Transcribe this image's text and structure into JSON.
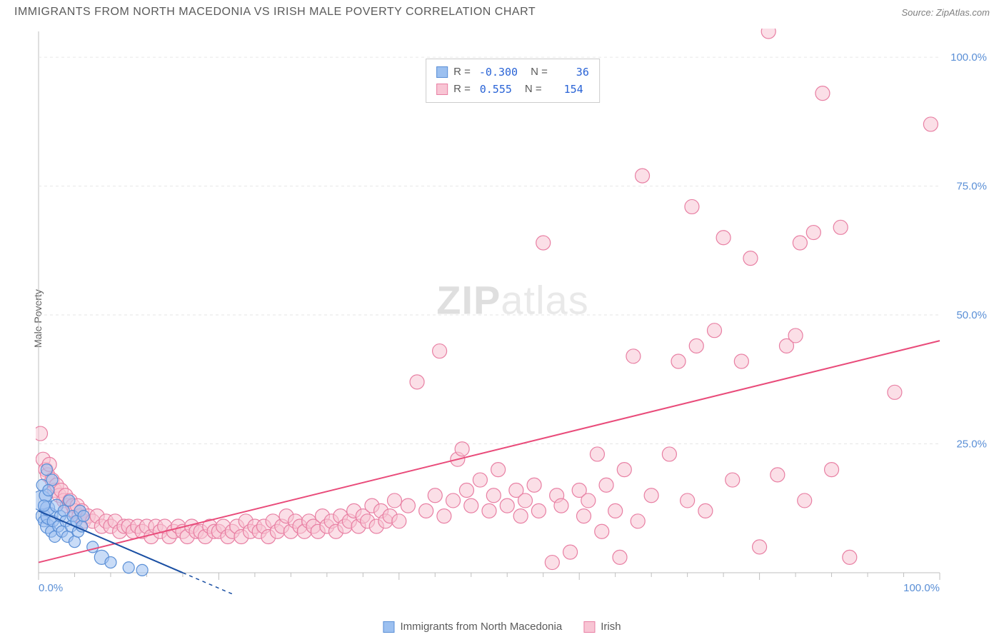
{
  "header": {
    "title": "IMMIGRANTS FROM NORTH MACEDONIA VS IRISH MALE POVERTY CORRELATION CHART",
    "source_prefix": "Source: ",
    "source_name": "ZipAtlas.com"
  },
  "yaxis": {
    "label": "Male Poverty"
  },
  "watermark": {
    "part1": "ZIP",
    "part2": "atlas"
  },
  "colors": {
    "series_a_fill": "#9cc0f0",
    "series_a_stroke": "#5a8fd6",
    "series_a_line": "#1a4fa3",
    "series_b_fill": "#f8c5d4",
    "series_b_stroke": "#e87fa3",
    "series_b_line": "#e94b7a",
    "grid": "#e6e6e6",
    "axis": "#bfbfbf",
    "tick_text": "#5a8fd6",
    "title_text": "#5a5a5a",
    "stat_value": "#2963d6"
  },
  "chart": {
    "type": "scatter-correlation",
    "xlim": [
      0,
      100
    ],
    "ylim": [
      0,
      105
    ],
    "x_ticks_major": [
      0,
      20,
      40,
      60,
      80,
      100
    ],
    "x_ticks_minor_step": 4,
    "y_ticks": [
      25,
      50,
      75,
      100
    ],
    "x_tick_labels": {
      "0": "0.0%",
      "100": "100.0%"
    },
    "y_tick_labels": {
      "25": "25.0%",
      "50": "50.0%",
      "75": "75.0%",
      "100": "100.0%"
    },
    "marker_radius": 10,
    "marker_radius_large": 14,
    "marker_stroke_width": 1.2,
    "trend_line_width": 2,
    "background": "#ffffff"
  },
  "stats_legend": {
    "rows": [
      {
        "swatch_fill": "#9cc0f0",
        "swatch_stroke": "#5a8fd6",
        "r_label": "R =",
        "r_value": "-0.300",
        "n_label": "N =",
        "n_value": "36"
      },
      {
        "swatch_fill": "#f8c5d4",
        "swatch_stroke": "#e87fa3",
        "r_label": "R =",
        "r_value": "0.555",
        "n_label": "N =",
        "n_value": "154"
      }
    ]
  },
  "bottom_legend": {
    "items": [
      {
        "swatch_fill": "#9cc0f0",
        "swatch_stroke": "#5a8fd6",
        "label": "Immigrants from North Macedonia"
      },
      {
        "swatch_fill": "#f8c5d4",
        "swatch_stroke": "#e87fa3",
        "label": "Irish"
      }
    ]
  },
  "series_a": {
    "name": "Immigrants from North Macedonia",
    "trend": {
      "x0": 0,
      "y0": 12,
      "x1": 16,
      "y1": 0,
      "dash_extend_x": 22
    },
    "points": [
      [
        0.3,
        14,
        14
      ],
      [
        0.5,
        11,
        10
      ],
      [
        0.6,
        10,
        8
      ],
      [
        0.8,
        15,
        9
      ],
      [
        1.0,
        9,
        10
      ],
      [
        1.2,
        11,
        12
      ],
      [
        1.0,
        12.5,
        10
      ],
      [
        1.4,
        8,
        8
      ],
      [
        1.6,
        10,
        8
      ],
      [
        1.8,
        7,
        8
      ],
      [
        2.0,
        13,
        9
      ],
      [
        2.2,
        9,
        8
      ],
      [
        2.4,
        11,
        8
      ],
      [
        2.6,
        8,
        8
      ],
      [
        2.8,
        12,
        8
      ],
      [
        3.0,
        10,
        8
      ],
      [
        3.2,
        7,
        8
      ],
      [
        3.4,
        14,
        8
      ],
      [
        3.6,
        9,
        8
      ],
      [
        3.8,
        11,
        8
      ],
      [
        4.0,
        6,
        8
      ],
      [
        4.2,
        10,
        8
      ],
      [
        4.4,
        8,
        8
      ],
      [
        4.6,
        12,
        8
      ],
      [
        4.8,
        9,
        8
      ],
      [
        5.0,
        11,
        8
      ],
      [
        1.5,
        18,
        8
      ],
      [
        0.4,
        17,
        8
      ],
      [
        0.9,
        20,
        8
      ],
      [
        1.1,
        16,
        8
      ],
      [
        6.0,
        5,
        8
      ],
      [
        7.0,
        3,
        10
      ],
      [
        8.0,
        2,
        8
      ],
      [
        10.0,
        1,
        8
      ],
      [
        11.5,
        0.5,
        8
      ],
      [
        0.6,
        13,
        8
      ]
    ]
  },
  "series_b": {
    "name": "Irish",
    "trend": {
      "x0": 0,
      "y0": 2,
      "x1": 100,
      "y1": 45
    },
    "points": [
      [
        0.2,
        27
      ],
      [
        0.5,
        22
      ],
      [
        0.8,
        20
      ],
      [
        1.0,
        19
      ],
      [
        1.2,
        21
      ],
      [
        1.5,
        18
      ],
      [
        1.8,
        16
      ],
      [
        2.0,
        17
      ],
      [
        2.3,
        15
      ],
      [
        2.5,
        16
      ],
      [
        2.8,
        14
      ],
      [
        3.0,
        15
      ],
      [
        3.2,
        13
      ],
      [
        3.5,
        14
      ],
      [
        3.8,
        13
      ],
      [
        4.0,
        12
      ],
      [
        4.3,
        13
      ],
      [
        4.5,
        11
      ],
      [
        4.8,
        12
      ],
      [
        5.0,
        10
      ],
      [
        5.5,
        11
      ],
      [
        6.0,
        10
      ],
      [
        6.5,
        11
      ],
      [
        7.0,
        9
      ],
      [
        7.5,
        10
      ],
      [
        8.0,
        9
      ],
      [
        8.5,
        10
      ],
      [
        9.0,
        8
      ],
      [
        9.5,
        9
      ],
      [
        10.0,
        9
      ],
      [
        10.5,
        8
      ],
      [
        11.0,
        9
      ],
      [
        11.5,
        8
      ],
      [
        12.0,
        9
      ],
      [
        12.5,
        7
      ],
      [
        13.0,
        9
      ],
      [
        13.5,
        8
      ],
      [
        14.0,
        9
      ],
      [
        14.5,
        7
      ],
      [
        15.0,
        8
      ],
      [
        15.5,
        9
      ],
      [
        16.0,
        8
      ],
      [
        16.5,
        7
      ],
      [
        17.0,
        9
      ],
      [
        17.5,
        8
      ],
      [
        18.0,
        8
      ],
      [
        18.5,
        7
      ],
      [
        19.0,
        9
      ],
      [
        19.5,
        8
      ],
      [
        20.0,
        8
      ],
      [
        20.5,
        9
      ],
      [
        21.0,
        7
      ],
      [
        21.5,
        8
      ],
      [
        22.0,
        9
      ],
      [
        22.5,
        7
      ],
      [
        23.0,
        10
      ],
      [
        23.5,
        8
      ],
      [
        24.0,
        9
      ],
      [
        24.5,
        8
      ],
      [
        25.0,
        9
      ],
      [
        25.5,
        7
      ],
      [
        26.0,
        10
      ],
      [
        26.5,
        8
      ],
      [
        27.0,
        9
      ],
      [
        27.5,
        11
      ],
      [
        28.0,
        8
      ],
      [
        28.5,
        10
      ],
      [
        29.0,
        9
      ],
      [
        29.5,
        8
      ],
      [
        30.0,
        10
      ],
      [
        30.5,
        9
      ],
      [
        31.0,
        8
      ],
      [
        31.5,
        11
      ],
      [
        32.0,
        9
      ],
      [
        32.5,
        10
      ],
      [
        33.0,
        8
      ],
      [
        33.5,
        11
      ],
      [
        34.0,
        9
      ],
      [
        34.5,
        10
      ],
      [
        35.0,
        12
      ],
      [
        35.5,
        9
      ],
      [
        36.0,
        11
      ],
      [
        36.5,
        10
      ],
      [
        37.0,
        13
      ],
      [
        37.5,
        9
      ],
      [
        38.0,
        12
      ],
      [
        38.5,
        10
      ],
      [
        39.0,
        11
      ],
      [
        39.5,
        14
      ],
      [
        40.0,
        10
      ],
      [
        41.0,
        13
      ],
      [
        42.0,
        37
      ],
      [
        43.0,
        12
      ],
      [
        44.0,
        15
      ],
      [
        44.5,
        43
      ],
      [
        45.0,
        11
      ],
      [
        46.0,
        14
      ],
      [
        46.5,
        22
      ],
      [
        47.0,
        24
      ],
      [
        47.5,
        16
      ],
      [
        48.0,
        13
      ],
      [
        49.0,
        18
      ],
      [
        50.0,
        12
      ],
      [
        50.5,
        15
      ],
      [
        51.0,
        20
      ],
      [
        52.0,
        13
      ],
      [
        53.0,
        16
      ],
      [
        53.5,
        11
      ],
      [
        54.0,
        14
      ],
      [
        55.0,
        17
      ],
      [
        55.5,
        12
      ],
      [
        56.0,
        64
      ],
      [
        57.0,
        2
      ],
      [
        57.5,
        15
      ],
      [
        58.0,
        13
      ],
      [
        59.0,
        4
      ],
      [
        60.0,
        16
      ],
      [
        60.5,
        11
      ],
      [
        61.0,
        14
      ],
      [
        62.0,
        23
      ],
      [
        62.5,
        8
      ],
      [
        63.0,
        17
      ],
      [
        64.0,
        12
      ],
      [
        64.5,
        3
      ],
      [
        65.0,
        20
      ],
      [
        66.0,
        42
      ],
      [
        66.5,
        10
      ],
      [
        67.0,
        77
      ],
      [
        68.0,
        15
      ],
      [
        70.0,
        23
      ],
      [
        71.0,
        41
      ],
      [
        72.0,
        14
      ],
      [
        72.5,
        71
      ],
      [
        73.0,
        44
      ],
      [
        74.0,
        12
      ],
      [
        75.0,
        47
      ],
      [
        76.0,
        65
      ],
      [
        77.0,
        18
      ],
      [
        78.0,
        41
      ],
      [
        79.0,
        61
      ],
      [
        80.0,
        5
      ],
      [
        81.0,
        105
      ],
      [
        82.0,
        19
      ],
      [
        83.0,
        44
      ],
      [
        84.0,
        46
      ],
      [
        84.5,
        64
      ],
      [
        85.0,
        14
      ],
      [
        86.0,
        66
      ],
      [
        87.0,
        93
      ],
      [
        88.0,
        20
      ],
      [
        89.0,
        67
      ],
      [
        90.0,
        3
      ],
      [
        95.0,
        35
      ],
      [
        99.0,
        87
      ]
    ]
  }
}
